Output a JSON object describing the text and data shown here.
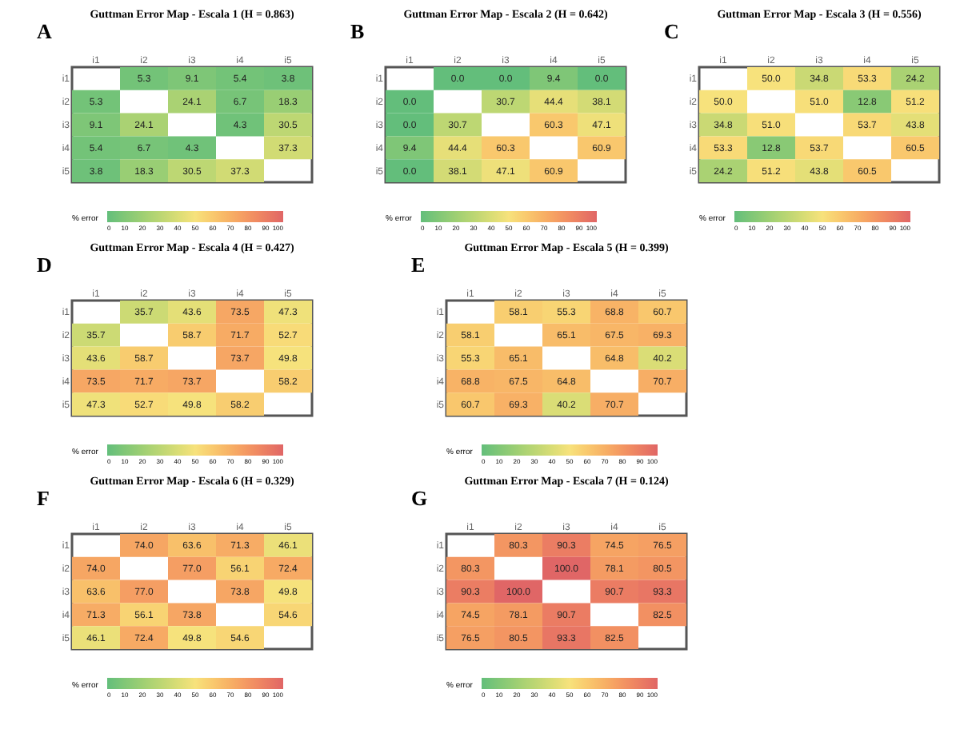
{
  "chart_data": [
    {
      "type": "heatmap",
      "title": "Guttman Error Map - Escala 1 (H = 0.863)",
      "annotations": [
        "A"
      ],
      "categories": [
        "i1",
        "i2",
        "i3",
        "i4",
        "i5"
      ],
      "y_categories": [
        "i1",
        "i2",
        "i3",
        "i4",
        "i5"
      ],
      "cells": [
        [
          null,
          5.3,
          9.1,
          5.4,
          3.8
        ],
        [
          5.3,
          null,
          24.1,
          6.7,
          18.3
        ],
        [
          9.1,
          24.1,
          null,
          4.3,
          30.5
        ],
        [
          5.4,
          6.7,
          4.3,
          null,
          37.3
        ],
        [
          3.8,
          18.3,
          30.5,
          37.3,
          null
        ]
      ],
      "cell_labels": [
        [
          null,
          "5.3",
          "9.1",
          "5.4",
          "3.8"
        ],
        [
          "5.3",
          null,
          "24.1",
          "6.7",
          "18.3"
        ],
        [
          "9.1",
          "24.1",
          null,
          "4.3",
          "30.5"
        ],
        [
          "5.4",
          "6.7",
          "4.3",
          null,
          "37.3"
        ],
        [
          "3.8",
          "18.3",
          "30.5",
          "37.3",
          null
        ]
      ],
      "clabel": "% error",
      "clim": [
        0,
        100
      ],
      "cticks": [
        0,
        10,
        20,
        30,
        40,
        50,
        60,
        70,
        80,
        90,
        100
      ]
    },
    {
      "type": "heatmap",
      "title": "Guttman Error Map - Escala 2 (H = 0.642)",
      "annotations": [
        "B"
      ],
      "categories": [
        "i1",
        "i2",
        "i3",
        "i4",
        "i5"
      ],
      "y_categories": [
        "i1",
        "i2",
        "i3",
        "i4",
        "i5"
      ],
      "cells": [
        [
          null,
          0,
          0,
          9.4,
          0
        ],
        [
          0,
          null,
          30.7,
          44.4,
          38.1
        ],
        [
          0,
          30.7,
          null,
          60.3,
          47.1
        ],
        [
          9.4,
          44.4,
          60.3,
          null,
          60.9
        ],
        [
          0,
          38.1,
          47.1,
          60.9,
          null
        ]
      ],
      "cell_labels": [
        [
          null,
          "0.0",
          "0.0",
          "9.4",
          "0.0"
        ],
        [
          "0.0",
          null,
          "30.7",
          "44.4",
          "38.1"
        ],
        [
          "0.0",
          "30.7",
          null,
          "60.3",
          "47.1"
        ],
        [
          "9.4",
          "44.4",
          "60.3",
          null,
          "60.9"
        ],
        [
          "0.0",
          "38.1",
          "47.1",
          "60.9",
          null
        ]
      ],
      "clabel": "% error",
      "clim": [
        0,
        100
      ],
      "cticks": [
        0,
        10,
        20,
        30,
        40,
        50,
        60,
        70,
        80,
        90,
        100
      ]
    },
    {
      "type": "heatmap",
      "title": "Guttman Error Map - Escala 3 (H = 0.556)",
      "annotations": [
        "C"
      ],
      "categories": [
        "i1",
        "i2",
        "i3",
        "i4",
        "i5"
      ],
      "y_categories": [
        "i1",
        "i2",
        "i3",
        "i4",
        "i5"
      ],
      "cells": [
        [
          null,
          50,
          34.8,
          53.3,
          24.2
        ],
        [
          50,
          null,
          51,
          12.8,
          51.2
        ],
        [
          34.8,
          51,
          null,
          53.7,
          43.8
        ],
        [
          53.3,
          12.8,
          53.7,
          null,
          60.5
        ],
        [
          24.2,
          51.2,
          43.8,
          60.5,
          null
        ]
      ],
      "cell_labels": [
        [
          null,
          "50.0",
          "34.8",
          "53.3",
          "24.2"
        ],
        [
          "50.0",
          null,
          "51.0",
          "12.8",
          "51.2"
        ],
        [
          "34.8",
          "51.0",
          null,
          "53.7",
          "43.8"
        ],
        [
          "53.3",
          "12.8",
          "53.7",
          null,
          "60.5"
        ],
        [
          "24.2",
          "51.2",
          "43.8",
          "60.5",
          null
        ]
      ],
      "clabel": "% error",
      "clim": [
        0,
        100
      ],
      "cticks": [
        0,
        10,
        20,
        30,
        40,
        50,
        60,
        70,
        80,
        90,
        100
      ]
    },
    {
      "type": "heatmap",
      "title": "Guttman Error Map - Escala 4 (H = 0.427)",
      "annotations": [
        "D"
      ],
      "categories": [
        "i1",
        "i2",
        "i3",
        "i4",
        "i5"
      ],
      "y_categories": [
        "i1",
        "i2",
        "i3",
        "i4",
        "i5"
      ],
      "cells": [
        [
          null,
          35.7,
          43.6,
          73.5,
          47.3
        ],
        [
          35.7,
          null,
          58.7,
          71.7,
          52.7
        ],
        [
          43.6,
          58.7,
          null,
          73.7,
          49.8
        ],
        [
          73.5,
          71.7,
          73.7,
          null,
          58.2
        ],
        [
          47.3,
          52.7,
          49.8,
          58.2,
          null
        ]
      ],
      "cell_labels": [
        [
          null,
          "35.7",
          "43.6",
          "73.5",
          "47.3"
        ],
        [
          "35.7",
          null,
          "58.7",
          "71.7",
          "52.7"
        ],
        [
          "43.6",
          "58.7",
          null,
          "73.7",
          "49.8"
        ],
        [
          "73.5",
          "71.7",
          "73.7",
          null,
          "58.2"
        ],
        [
          "47.3",
          "52.7",
          "49.8",
          "58.2",
          null
        ]
      ],
      "clabel": "% error",
      "clim": [
        0,
        100
      ],
      "cticks": [
        0,
        10,
        20,
        30,
        40,
        50,
        60,
        70,
        80,
        90,
        100
      ]
    },
    {
      "type": "heatmap",
      "title": "Guttman Error Map - Escala 5 (H = 0.399)",
      "annotations": [
        "E"
      ],
      "categories": [
        "i1",
        "i2",
        "i3",
        "i4",
        "i5"
      ],
      "y_categories": [
        "i1",
        "i2",
        "i3",
        "i4",
        "i5"
      ],
      "cells": [
        [
          null,
          58.1,
          55.3,
          68.8,
          60.7
        ],
        [
          58.1,
          null,
          65.1,
          67.5,
          69.3
        ],
        [
          55.3,
          65.1,
          null,
          64.8,
          40.2
        ],
        [
          68.8,
          67.5,
          64.8,
          null,
          70.7
        ],
        [
          60.7,
          69.3,
          40.2,
          70.7,
          null
        ]
      ],
      "cell_labels": [
        [
          null,
          "58.1",
          "55.3",
          "68.8",
          "60.7"
        ],
        [
          "58.1",
          null,
          "65.1",
          "67.5",
          "69.3"
        ],
        [
          "55.3",
          "65.1",
          null,
          "64.8",
          "40.2"
        ],
        [
          "68.8",
          "67.5",
          "64.8",
          null,
          "70.7"
        ],
        [
          "60.7",
          "69.3",
          "40.2",
          "70.7",
          null
        ]
      ],
      "clabel": "% error",
      "clim": [
        0,
        100
      ],
      "cticks": [
        0,
        10,
        20,
        30,
        40,
        50,
        60,
        70,
        80,
        90,
        100
      ]
    },
    {
      "type": "heatmap",
      "title": "Guttman Error Map - Escala 6 (H = 0.329)",
      "annotations": [
        "F"
      ],
      "categories": [
        "i1",
        "i2",
        "i3",
        "i4",
        "i5"
      ],
      "y_categories": [
        "i1",
        "i2",
        "i3",
        "i4",
        "i5"
      ],
      "cells": [
        [
          null,
          74,
          63.6,
          71.3,
          46.1
        ],
        [
          74,
          null,
          77,
          56.1,
          72.4
        ],
        [
          63.6,
          77,
          null,
          73.8,
          49.8
        ],
        [
          71.3,
          56.1,
          73.8,
          null,
          54.6
        ],
        [
          46.1,
          72.4,
          49.8,
          54.6,
          null
        ]
      ],
      "cell_labels": [
        [
          null,
          "74.0",
          "63.6",
          "71.3",
          "46.1"
        ],
        [
          "74.0",
          null,
          "77.0",
          "56.1",
          "72.4"
        ],
        [
          "63.6",
          "77.0",
          null,
          "73.8",
          "49.8"
        ],
        [
          "71.3",
          "56.1",
          "73.8",
          null,
          "54.6"
        ],
        [
          "46.1",
          "72.4",
          "49.8",
          "54.6",
          null
        ]
      ],
      "clabel": "% error",
      "clim": [
        0,
        100
      ],
      "cticks": [
        0,
        10,
        20,
        30,
        40,
        50,
        60,
        70,
        80,
        90,
        100
      ]
    },
    {
      "type": "heatmap",
      "title": "Guttman Error Map - Escala 7 (H = 0.124)",
      "annotations": [
        "G"
      ],
      "categories": [
        "i1",
        "i2",
        "i3",
        "i4",
        "i5"
      ],
      "y_categories": [
        "i1",
        "i2",
        "i3",
        "i4",
        "i5"
      ],
      "cells": [
        [
          null,
          80.3,
          90.3,
          74.5,
          76.5
        ],
        [
          80.3,
          null,
          100,
          78.1,
          80.5
        ],
        [
          90.3,
          100,
          null,
          90.7,
          93.3
        ],
        [
          74.5,
          78.1,
          90.7,
          null,
          82.5
        ],
        [
          76.5,
          80.5,
          93.3,
          82.5,
          null
        ]
      ],
      "cell_labels": [
        [
          null,
          "80.3",
          "90.3",
          "74.5",
          "76.5"
        ],
        [
          "80.3",
          null,
          "100.0",
          "78.1",
          "80.5"
        ],
        [
          "90.3",
          "100.0",
          null,
          "90.7",
          "93.3"
        ],
        [
          "74.5",
          "78.1",
          "90.7",
          null,
          "82.5"
        ],
        [
          "76.5",
          "80.5",
          "93.3",
          "82.5",
          null
        ]
      ],
      "clabel": "% error",
      "clim": [
        0,
        100
      ],
      "cticks": [
        0,
        10,
        20,
        30,
        40,
        50,
        60,
        70,
        80,
        90,
        100
      ]
    }
  ]
}
